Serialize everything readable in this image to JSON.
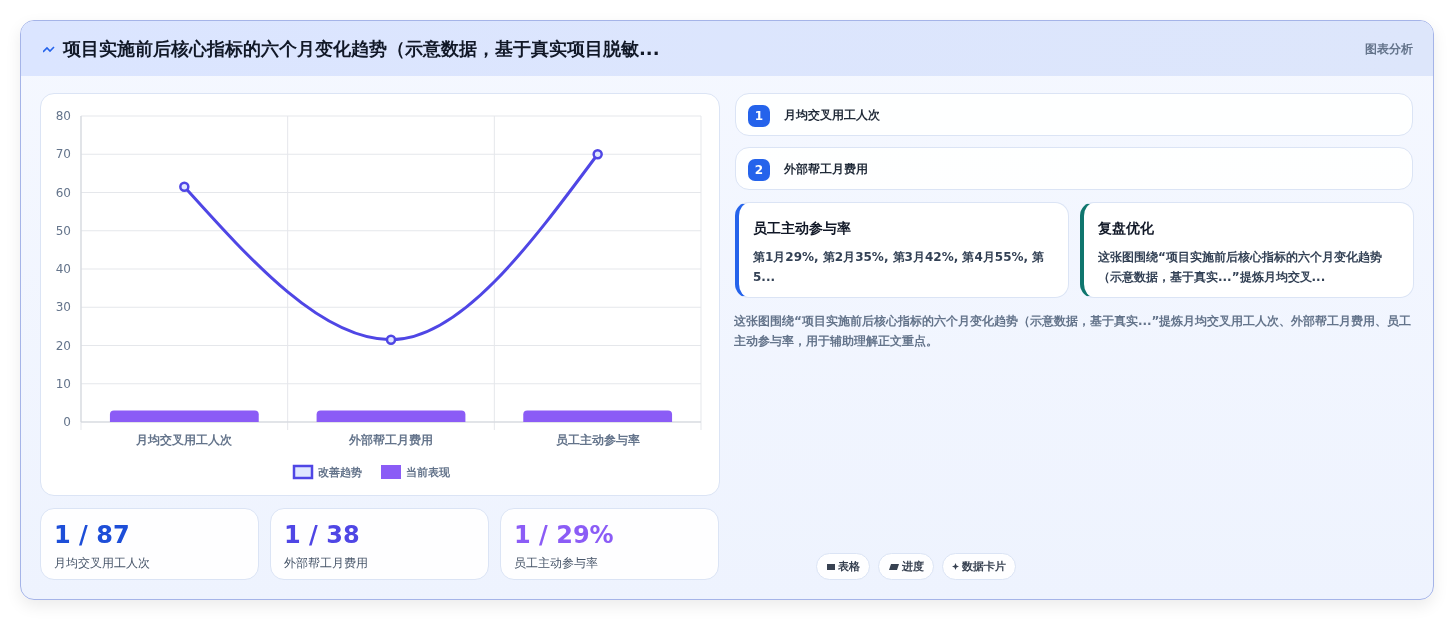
{
  "chart_data": [
    {
      "type": "bar",
      "title": "项目实施前后核心指标的六个月变化趋势（示意数据，基于真实项目脱敏...",
      "categories": [
        "月均交叉用工人次",
        "外部帮工月费用",
        "员工主动参与率"
      ],
      "series": [
        {
          "name": "改善趋势",
          "type": "line",
          "color": "#4f46e5",
          "values": [
            61.5,
            21.5,
            70
          ]
        },
        {
          "name": "当前表现",
          "color": "#8b5cf6",
          "values": [
            3,
            3,
            3
          ]
        }
      ],
      "ylim": [
        0,
        80
      ],
      "yticks": [
        0,
        10,
        20,
        30,
        40,
        50,
        60,
        70,
        80
      ],
      "grid": true,
      "legend": "bottom",
      "marker": "circle"
    },
    {
      "type": "other",
      "annotations": [
        "图表分析",
        "1",
        "月均交叉用工人次",
        "2",
        "外部帮工月费用",
        "员工主动参与率",
        "第1月29%, 第2月35%, 第3月42%, 第4月55%, 第5...",
        "复盘优化",
        "这张图围绕“项目实施前后核心指标的六个月变化趋势（示意数据，基于真实...”提炼月均交叉...",
        "这张图围绕“项目实施前后核心指标的六个月变化趋势（示意数据，基于真实...”提炼月均交叉用工人次、外部帮工月费用、员工主动参与率，用于辅助理解正文重点。",
        "1 / 87",
        "月均交叉用工人次",
        "1 / 38",
        "外部帮工月费用",
        "1 / 29%",
        "员工主动参与率",
        "表格",
        "进度",
        "数据卡片"
      ]
    }
  ]
}
